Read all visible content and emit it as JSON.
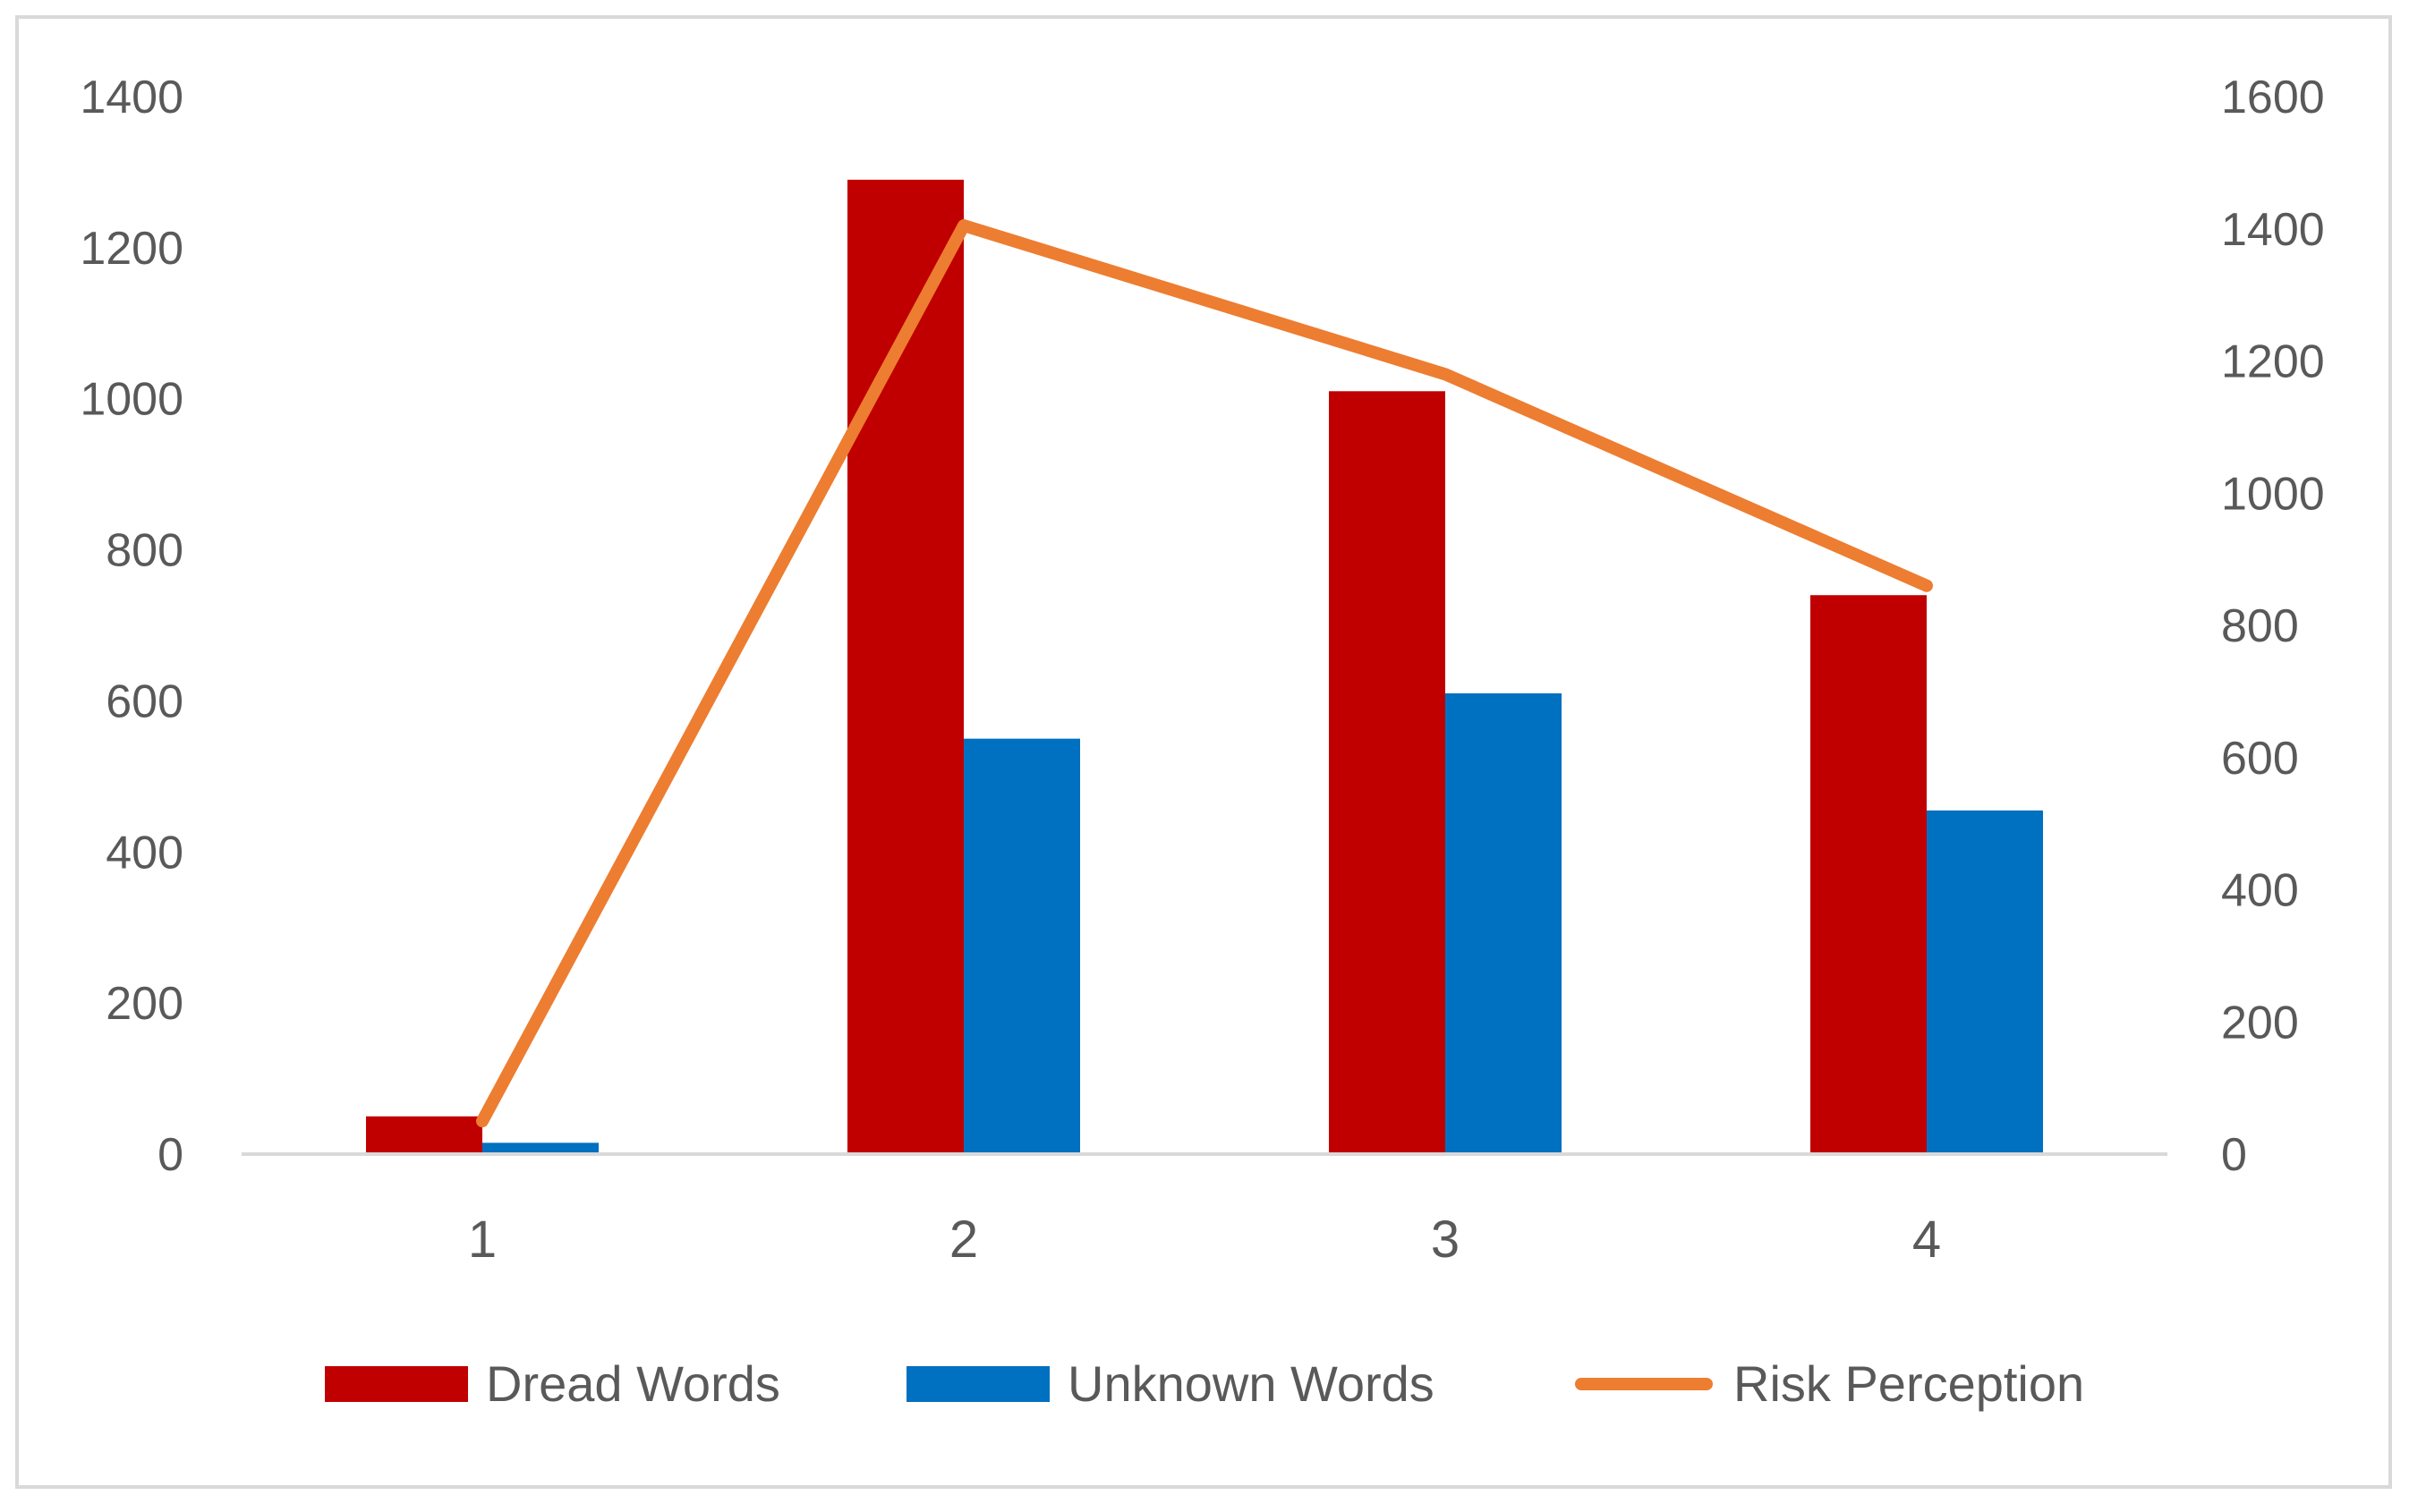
{
  "chart_data": {
    "type": "bar",
    "categories": [
      "1",
      "2",
      "3",
      "4"
    ],
    "series": [
      {
        "name": "Dread Words",
        "type": "bar",
        "axis": "left",
        "color": "#C00000",
        "values": [
          50,
          1290,
          1010,
          740
        ]
      },
      {
        "name": "Unknown Words",
        "type": "bar",
        "axis": "left",
        "color": "#0070C0",
        "values": [
          15,
          550,
          610,
          455
        ]
      },
      {
        "name": "Risk Perception",
        "type": "line",
        "axis": "right",
        "color": "#ED7D31",
        "values": [
          50,
          1405,
          1180,
          860
        ]
      }
    ],
    "y_left": {
      "min": 0,
      "max": 1400,
      "ticks": [
        0,
        200,
        400,
        600,
        800,
        1000,
        1200,
        1400
      ]
    },
    "y_right": {
      "min": 0,
      "max": 1600,
      "ticks": [
        0,
        200,
        400,
        600,
        800,
        1000,
        1200,
        1400,
        1600
      ]
    },
    "grid": false,
    "legend_position": "bottom"
  }
}
